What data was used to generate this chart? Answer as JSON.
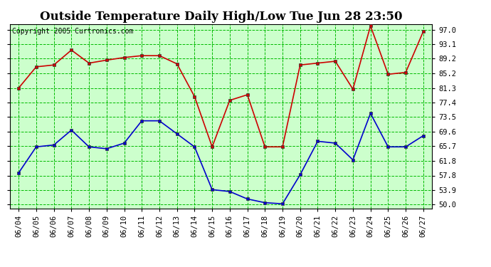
{
  "title": "Outside Temperature Daily High/Low Tue Jun 28 23:50",
  "copyright": "Copyright 2005 Curtronics.com",
  "dates": [
    "06/04",
    "06/05",
    "06/06",
    "06/07",
    "06/08",
    "06/09",
    "06/10",
    "06/11",
    "06/12",
    "06/13",
    "06/14",
    "06/15",
    "06/16",
    "06/17",
    "06/18",
    "06/19",
    "06/20",
    "06/21",
    "06/22",
    "06/23",
    "06/24",
    "06/25",
    "06/26",
    "06/27"
  ],
  "high_data": [
    81.3,
    87.0,
    87.5,
    91.5,
    88.0,
    88.8,
    89.5,
    90.0,
    90.0,
    87.8,
    79.0,
    65.5,
    78.0,
    79.5,
    65.5,
    65.5,
    87.5,
    88.0,
    88.5,
    81.0,
    98.0,
    85.0,
    85.5,
    96.5
  ],
  "low_data": [
    58.5,
    65.5,
    66.0,
    70.0,
    65.5,
    65.0,
    66.5,
    72.5,
    72.5,
    69.0,
    65.5,
    54.0,
    53.5,
    51.5,
    50.5,
    50.2,
    58.0,
    67.0,
    66.5,
    62.0,
    74.5,
    65.5,
    65.5,
    68.5
  ],
  "high_color": "#cc0000",
  "low_color": "#0000cc",
  "bg_color": "#ffffff",
  "plot_bg_color": "#ccffcc",
  "grid_color": "#00bb00",
  "yticks": [
    50.0,
    53.9,
    57.8,
    61.8,
    65.7,
    69.6,
    73.5,
    77.4,
    81.3,
    85.2,
    89.2,
    93.1,
    97.0
  ],
  "ylim": [
    49.0,
    98.5
  ],
  "title_fontsize": 12,
  "copyright_fontsize": 7,
  "tick_fontsize": 7.5
}
